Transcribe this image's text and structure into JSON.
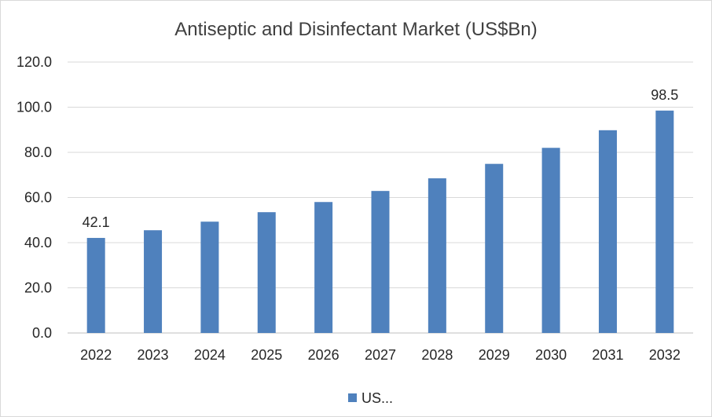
{
  "chart_data": {
    "type": "bar",
    "title": "Antiseptic and Disinfectant Market (US$Bn)",
    "categories": [
      "2022",
      "2023",
      "2024",
      "2025",
      "2026",
      "2027",
      "2028",
      "2029",
      "2030",
      "2031",
      "2032"
    ],
    "series": [
      {
        "name": "US...",
        "values": [
          42.1,
          45.5,
          49.3,
          53.5,
          58.0,
          62.9,
          68.5,
          74.9,
          82.0,
          89.8,
          98.5
        ],
        "color": "#4f81bd"
      }
    ],
    "data_labels": [
      {
        "category": "2022",
        "text": "42.1"
      },
      {
        "category": "2032",
        "text": "98.5"
      }
    ],
    "yticks": [
      "0.0",
      "20.0",
      "40.0",
      "60.0",
      "80.0",
      "100.0",
      "120.0"
    ],
    "ylim": [
      0,
      120
    ],
    "grid": true,
    "gridline_color": "#d9d9d9",
    "legend_position": "bottom"
  }
}
